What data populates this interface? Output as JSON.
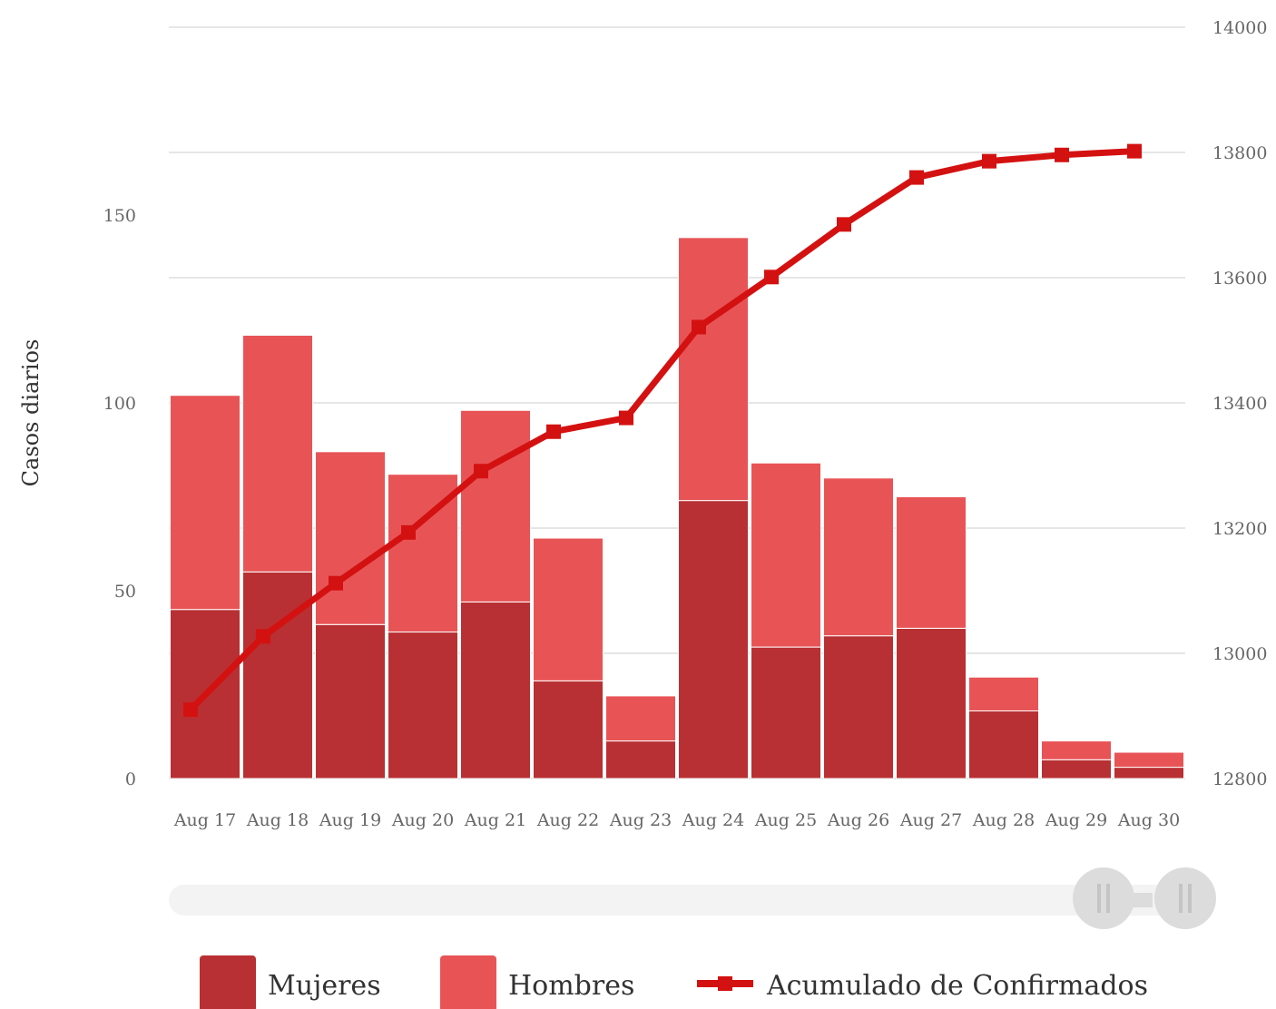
{
  "chart_data": {
    "type": "bar",
    "stacked": true,
    "categories": [
      "Aug 17",
      "Aug 18",
      "Aug 19",
      "Aug 20",
      "Aug 21",
      "Aug 22",
      "Aug 23",
      "Aug 24",
      "Aug 25",
      "Aug 26",
      "Aug 27",
      "Aug 28",
      "Aug 29",
      "Aug 30"
    ],
    "series": [
      {
        "name": "Mujeres",
        "type": "bar",
        "axis": "left",
        "color": "#b83033",
        "values": [
          45,
          55,
          41,
          39,
          47,
          26,
          10,
          74,
          35,
          38,
          40,
          18,
          5,
          3
        ]
      },
      {
        "name": "Hombres",
        "type": "bar",
        "axis": "left",
        "color": "#e85456",
        "values": [
          57,
          63,
          46,
          42,
          51,
          38,
          12,
          70,
          49,
          42,
          35,
          9,
          5,
          4
        ]
      },
      {
        "name": "Acumulado de Confirmados",
        "type": "line",
        "axis": "right",
        "color": "#d41111",
        "values": [
          12910,
          13027,
          13112,
          13193,
          13291,
          13354,
          13376,
          13521,
          13601,
          13685,
          13760,
          13786,
          13796,
          13802
        ]
      }
    ],
    "ylabel": "Casos diarios",
    "ylim": [
      0,
      200
    ],
    "yticks": [
      "0",
      "50",
      "100",
      "150"
    ],
    "y2lim": [
      12800,
      14000
    ],
    "y2ticks": [
      "12800",
      "13000",
      "13200",
      "13400",
      "13600",
      "13800",
      "14000"
    ],
    "grid": true,
    "legend_position": "bottom"
  }
}
